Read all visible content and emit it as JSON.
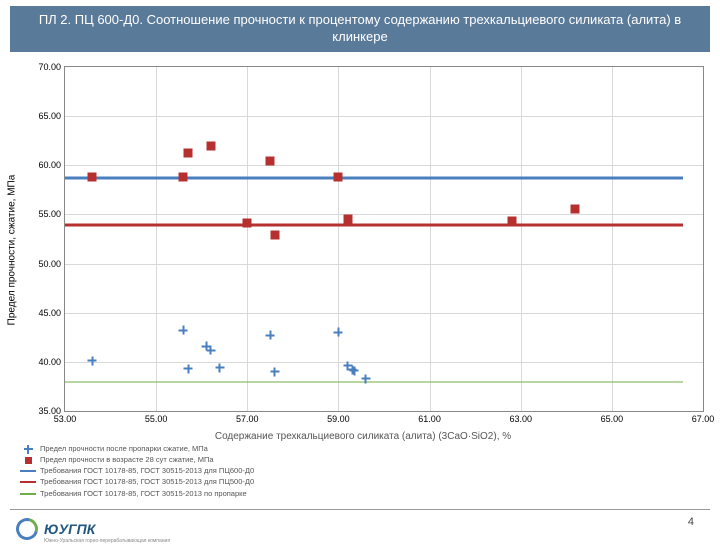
{
  "title": "ПЛ 2. ПЦ 600-Д0. Соотношение прочности к процентому содержанию трехкальциевого силиката (алита) в клинкере",
  "page_number": "4",
  "logo_text": "ЮУГПК",
  "logo_sub": "Южно-Уральская горно-перерабатывающая компания",
  "chart": {
    "type": "scatter",
    "xlabel": "Содержание трехкальциевого силиката (алита) (3CaO·SiO2), %",
    "ylabel": "Предел прочности, сжатие, МПа",
    "xlim": [
      53.0,
      67.0
    ],
    "ylim": [
      35.0,
      70.0
    ],
    "xticks": [
      53.0,
      55.0,
      57.0,
      59.0,
      61.0,
      63.0,
      65.0,
      67.0
    ],
    "yticks": [
      35.0,
      40.0,
      45.0,
      50.0,
      55.0,
      60.0,
      65.0,
      70.0
    ],
    "tick_format": "0.00",
    "background_color": "#ffffff",
    "grid_color": "#d9d9d9",
    "border_color": "#888888",
    "tick_fontsize": 9,
    "label_fontsize": 10,
    "series_plus": {
      "color": "#4a7fbf",
      "marker": "plus",
      "marker_size": 9,
      "points": [
        [
          53.6,
          40.1
        ],
        [
          55.6,
          43.2
        ],
        [
          55.7,
          39.3
        ],
        [
          56.1,
          41.6
        ],
        [
          56.2,
          41.2
        ],
        [
          56.4,
          39.4
        ],
        [
          57.5,
          42.7
        ],
        [
          57.6,
          39.0
        ],
        [
          59.0,
          43.0
        ],
        [
          59.2,
          39.6
        ],
        [
          59.3,
          39.2
        ],
        [
          59.35,
          39.1
        ],
        [
          59.6,
          38.3
        ]
      ]
    },
    "series_square": {
      "color": "#b73030",
      "marker": "square",
      "marker_size": 9,
      "points": [
        [
          53.6,
          58.8
        ],
        [
          55.6,
          58.8
        ],
        [
          55.7,
          61.3
        ],
        [
          56.2,
          62.0
        ],
        [
          57.0,
          54.1
        ],
        [
          57.5,
          60.4
        ],
        [
          57.6,
          52.9
        ],
        [
          59.0,
          58.8
        ],
        [
          59.2,
          54.5
        ],
        [
          62.8,
          54.3
        ],
        [
          64.2,
          55.6
        ]
      ]
    },
    "hlines": [
      {
        "y": 58.7,
        "color": "#4a7fbf",
        "width": 3
      },
      {
        "y": 53.9,
        "color": "#b73030",
        "width": 3
      },
      {
        "y": 38.0,
        "color": "#6fae4a",
        "width": 1
      }
    ]
  },
  "legend": [
    {
      "kind": "plus",
      "color": "#4a7fbf",
      "label": "Предел прочности после пропарки сжатие, МПа"
    },
    {
      "kind": "square",
      "color": "#b73030",
      "label": "Предел прочности в возрасте 28 сут сжатие, МПа"
    },
    {
      "kind": "line",
      "color": "#4a7fbf",
      "label": "Требования ГОСТ 10178-85, ГОСТ 30515-2013 для ПЦ600-Д0"
    },
    {
      "kind": "line",
      "color": "#b73030",
      "label": "Требования ГОСТ 10178-85, ГОСТ 30515-2013 для ПЦ500-Д0"
    },
    {
      "kind": "line",
      "color": "#6fae4a",
      "label": "Требования ГОСТ 10178-85, ГОСТ 30515-2013 по пропарке"
    }
  ]
}
